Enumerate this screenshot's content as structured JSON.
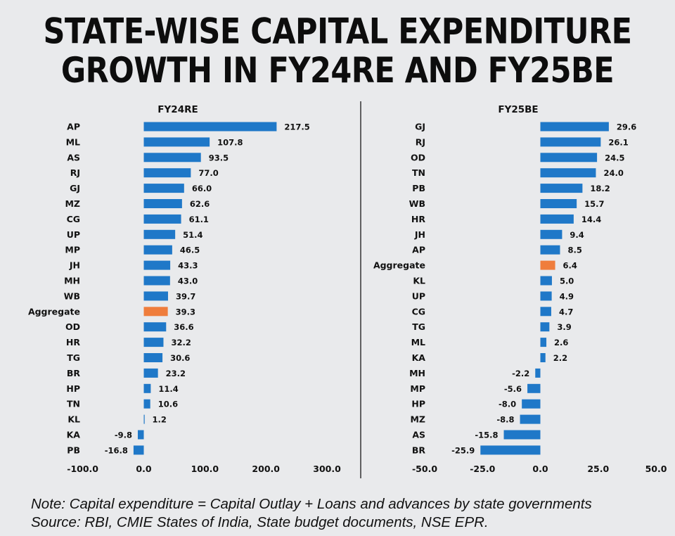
{
  "title": {
    "line1": "STATE-WISE CAPITAL EXPENDITURE",
    "line2": "GROWTH IN FY24RE AND FY25BE"
  },
  "note": {
    "line1": "Note: Capital expenditure = Capital Outlay + Loans and advances by state governments",
    "line2": "Source: RBI, CMIE States of India, State budget documents, NSE EPR."
  },
  "colors": {
    "bar": "#1f78c8",
    "aggregate": "#ef7d3c",
    "divider": "#333333"
  },
  "chart_data": [
    {
      "type": "bar",
      "orientation": "horizontal",
      "title": "FY24RE",
      "categories": [
        "AP",
        "ML",
        "AS",
        "RJ",
        "GJ",
        "MZ",
        "CG",
        "UP",
        "MP",
        "JH",
        "MH",
        "WB",
        "Aggregate",
        "OD",
        "HR",
        "TG",
        "BR",
        "HP",
        "TN",
        "KL",
        "KA",
        "PB"
      ],
      "values": [
        217.5,
        107.8,
        93.5,
        77.0,
        66.0,
        62.6,
        61.1,
        51.4,
        46.5,
        43.3,
        43.0,
        39.7,
        39.3,
        36.6,
        32.2,
        30.6,
        23.2,
        11.4,
        10.6,
        1.2,
        -9.8,
        -16.8
      ],
      "labels": [
        "217.5",
        "107.8",
        "93.5",
        "77.0",
        "66.0",
        "62.6",
        "61.1",
        "51.4",
        "46.5",
        "43.3",
        "43.0",
        "39.7",
        "39.3",
        "36.6",
        "32.2",
        "30.6",
        "23.2",
        "11.4",
        "10.6",
        "1.2",
        "-9.8",
        "-16.8"
      ],
      "xlim": [
        -100,
        300
      ],
      "ticks": [
        -100,
        0,
        100,
        200,
        300
      ],
      "tick_labels": [
        "-100.0",
        "0.0",
        "100.0",
        "200.0",
        "300.0"
      ],
      "highlight": "Aggregate"
    },
    {
      "type": "bar",
      "orientation": "horizontal",
      "title": "FY25BE",
      "categories": [
        "GJ",
        "RJ",
        "OD",
        "TN",
        "PB",
        "WB",
        "HR",
        "JH",
        "AP",
        "Aggregate",
        "KL",
        "UP",
        "CG",
        "TG",
        "ML",
        "KA",
        "MH",
        "MP",
        "HP",
        "MZ",
        "AS",
        "BR"
      ],
      "values": [
        29.6,
        26.1,
        24.5,
        24.0,
        18.2,
        15.7,
        14.4,
        9.4,
        8.5,
        6.4,
        5.0,
        4.9,
        4.7,
        3.9,
        2.6,
        2.2,
        -2.2,
        -5.6,
        -8.0,
        -8.8,
        -15.8,
        -25.9
      ],
      "labels": [
        "29.6",
        "26.1",
        "24.5",
        "24.0",
        "18.2",
        "15.7",
        "14.4",
        "9.4",
        "8.5",
        "6.4",
        "5.0",
        "4.9",
        "4.7",
        "3.9",
        "2.6",
        "2.2",
        "-2.2",
        "-5.6",
        "-8.0",
        "-8.8",
        "-15.8",
        "-25.9"
      ],
      "xlim": [
        -50,
        50
      ],
      "ticks": [
        -50,
        -25,
        0,
        25,
        50
      ],
      "tick_labels": [
        "-50.0",
        "-25.0",
        "0.0",
        "25.0",
        "50.0"
      ],
      "highlight": "Aggregate"
    }
  ]
}
